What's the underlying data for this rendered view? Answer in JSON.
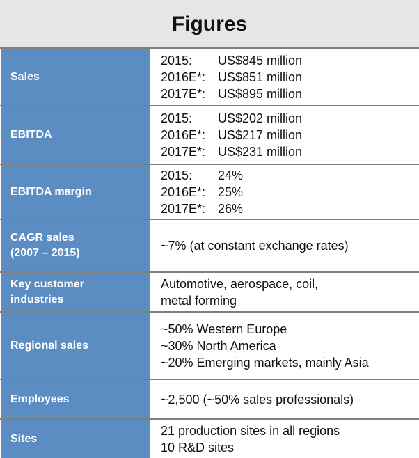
{
  "title": "Figures",
  "rows": [
    {
      "label_lines": [
        "Sales"
      ],
      "value_lines": [
        {
          "year": "2015:",
          "value": "US$845 million"
        },
        {
          "year": "2016E*:",
          "value": "US$851 million"
        },
        {
          "year": "2017E*:",
          "value": "US$895 million"
        }
      ]
    },
    {
      "label_lines": [
        "EBITDA"
      ],
      "value_lines": [
        {
          "year": "2015:",
          "value": "US$202 million"
        },
        {
          "year": "2016E*:",
          "value": "US$217 million"
        },
        {
          "year": "2017E*:",
          "value": "US$231 million"
        }
      ]
    },
    {
      "label_lines": [
        "EBITDA margin"
      ],
      "value_lines": [
        {
          "year": "2015:",
          "value": "24%"
        },
        {
          "year": "2016E*:",
          "value": "25%"
        },
        {
          "year": "2017E*:",
          "value": "26%"
        }
      ]
    },
    {
      "label_lines": [
        "CAGR sales",
        "(2007 – 2015)"
      ],
      "value_lines": [
        "~7% (at constant exchange rates)"
      ]
    },
    {
      "label_lines": [
        "Key customer",
        "industries"
      ],
      "value_lines": [
        "Automotive, aerospace, coil,",
        "metal forming"
      ]
    },
    {
      "label_lines": [
        "Regional sales"
      ],
      "value_lines": [
        "~50% Western Europe",
        "~30% North America",
        "~20% Emerging markets, mainly Asia"
      ]
    },
    {
      "label_lines": [
        "Employees"
      ],
      "value_lines": [
        "~2,500 (~50% sales professionals)"
      ]
    },
    {
      "label_lines": [
        "Sites"
      ],
      "value_lines": [
        "21 production sites in all regions",
        "10 R&D sites"
      ]
    }
  ]
}
